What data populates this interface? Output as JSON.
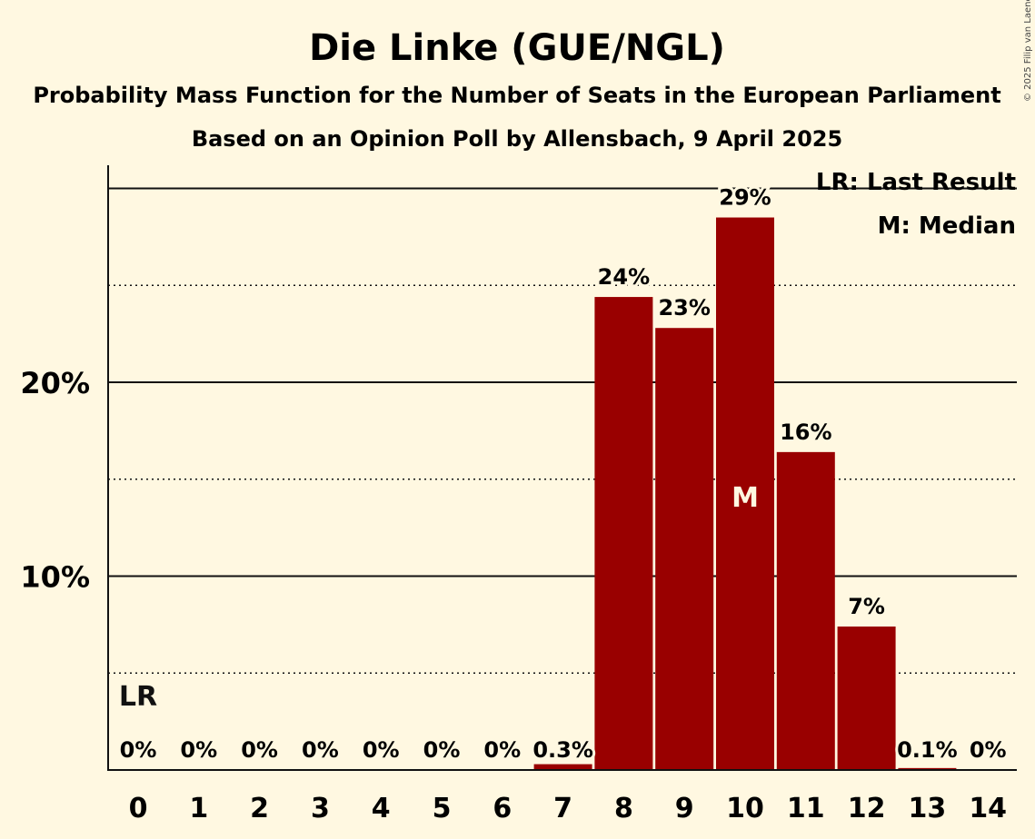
{
  "chart_data": {
    "type": "bar",
    "title": "Die Linke (GUE/NGL)",
    "subtitle_1": "Probability Mass Function for the Number of Seats in the European Parliament",
    "subtitle_2": "Based on an Opinion Poll by Allensbach, 9 April 2025",
    "copyright": "© 2025 Filip van Laenen",
    "legend": {
      "placement": "top-right",
      "last_result": "LR: Last Result",
      "median": "M: Median"
    },
    "categories": [
      "0",
      "1",
      "2",
      "3",
      "4",
      "5",
      "6",
      "7",
      "8",
      "9",
      "10",
      "11",
      "12",
      "13",
      "14"
    ],
    "values": [
      0,
      0,
      0,
      0,
      0,
      0,
      0,
      0.3,
      24.4,
      22.8,
      28.5,
      16.4,
      7.4,
      0.1,
      0
    ],
    "value_labels": [
      "0%",
      "0%",
      "0%",
      "0%",
      "0%",
      "0%",
      "0%",
      "0.3%",
      "24%",
      "23%",
      "29%",
      "16%",
      "7%",
      "0.1%",
      "0%"
    ],
    "y_ticks": [
      {
        "value": 10,
        "label": "10%"
      },
      {
        "value": 20,
        "label": "20%"
      }
    ],
    "ylim": [
      0,
      31
    ],
    "grid": {
      "solid_every": 10,
      "dotted_every": 5
    },
    "markers": {
      "last_result": {
        "category": "0",
        "label": "LR"
      },
      "median": {
        "category": "10",
        "label": "M"
      }
    },
    "colors": {
      "bar": "#990000",
      "background": "#fff8e1",
      "median_text": "#fff8e1"
    }
  }
}
